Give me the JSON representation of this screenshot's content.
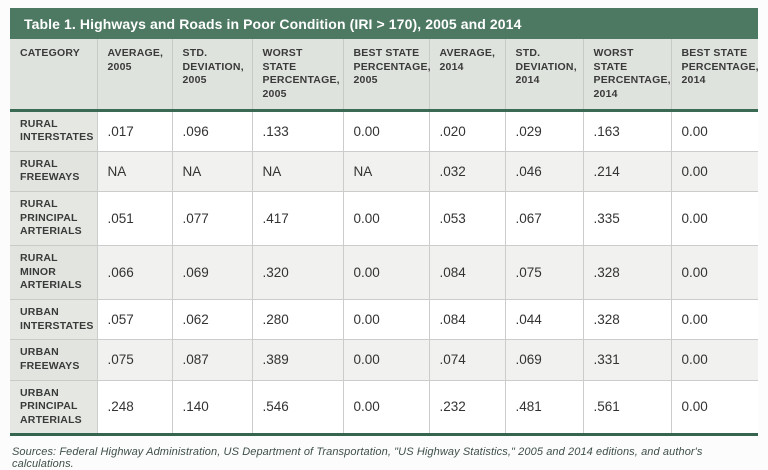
{
  "title": "Table 1. Highways and Roads in Poor Condition (IRI > 170), 2005 and 2014",
  "chart_data": {
    "type": "table",
    "columns": [
      "CATEGORY",
      "AVERAGE, 2005",
      "STD. DEVIATION, 2005",
      "WORST STATE PERCENTAGE, 2005",
      "BEST STATE PERCENTAGE, 2005",
      "AVERAGE, 2014",
      "STD. DEVIATION, 2014",
      "WORST STATE PERCENTAGE, 2014",
      "BEST STATE PERCENTAGE, 2014"
    ],
    "rows": [
      {
        "category": "RURAL INTERSTATES",
        "values": [
          ".017",
          ".096",
          ".133",
          "0.00",
          ".020",
          ".029",
          ".163",
          "0.00"
        ]
      },
      {
        "category": "RURAL FREEWAYS",
        "values": [
          "NA",
          "NA",
          "NA",
          "NA",
          ".032",
          ".046",
          ".214",
          "0.00"
        ]
      },
      {
        "category": "RURAL PRINCIPAL ARTERIALS",
        "values": [
          ".051",
          ".077",
          ".417",
          "0.00",
          ".053",
          ".067",
          ".335",
          "0.00"
        ]
      },
      {
        "category": "RURAL MINOR ARTERIALS",
        "values": [
          ".066",
          ".069",
          ".320",
          "0.00",
          ".084",
          ".075",
          ".328",
          "0.00"
        ]
      },
      {
        "category": "URBAN INTERSTATES",
        "values": [
          ".057",
          ".062",
          ".280",
          "0.00",
          ".084",
          ".044",
          ".328",
          "0.00"
        ]
      },
      {
        "category": "URBAN FREEWAYS",
        "values": [
          ".075",
          ".087",
          ".389",
          "0.00",
          ".074",
          ".069",
          ".331",
          "0.00"
        ]
      },
      {
        "category": "URBAN PRINCIPAL ARTERIALS",
        "values": [
          ".248",
          ".140",
          ".546",
          "0.00",
          ".232",
          ".481",
          ".561",
          "0.00"
        ]
      }
    ]
  },
  "footer": "Sources: Federal Highway Administration, US Department of Transportation, \"US Highway Statistics,\" 2005 and 2014 editions, and author's calculations.",
  "colors": {
    "title_bar_green": "#4d7962",
    "divider_green": "#35654f",
    "header_row_bg": "#dfe3de",
    "category_cell_bg": "#e4e7e2",
    "alt_row_bg": "#f1f1f0",
    "cell_border": "#cbcdcb",
    "source_text": "#3e5047"
  }
}
